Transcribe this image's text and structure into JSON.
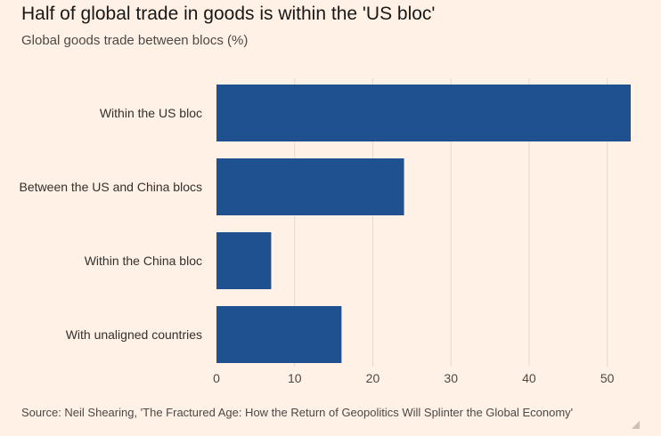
{
  "header": {
    "title": "Half of global trade in goods is within the 'US bloc'",
    "subtitle": "Global goods trade between blocs (%)"
  },
  "footer": {
    "source": "Source: Neil Shearing, 'The Fractured Age: How the Return of Geopolitics Will Splinter the Global Economy'"
  },
  "colors": {
    "background": "#fff1e5",
    "bar": "#1f5190",
    "grid": "#e6d9ce"
  },
  "chart_data": {
    "type": "bar",
    "orientation": "horizontal",
    "title": "Half of global trade in goods is within the 'US bloc'",
    "subtitle": "Global goods trade between blocs (%)",
    "categories": [
      "Within the US bloc",
      "Between the US and China blocs",
      "Within the China bloc",
      "With unaligned countries"
    ],
    "values": [
      53,
      24,
      7,
      16
    ],
    "xlim": [
      0,
      53
    ],
    "x_ticks": [
      0,
      10,
      20,
      30,
      40,
      50
    ],
    "grid": true
  }
}
